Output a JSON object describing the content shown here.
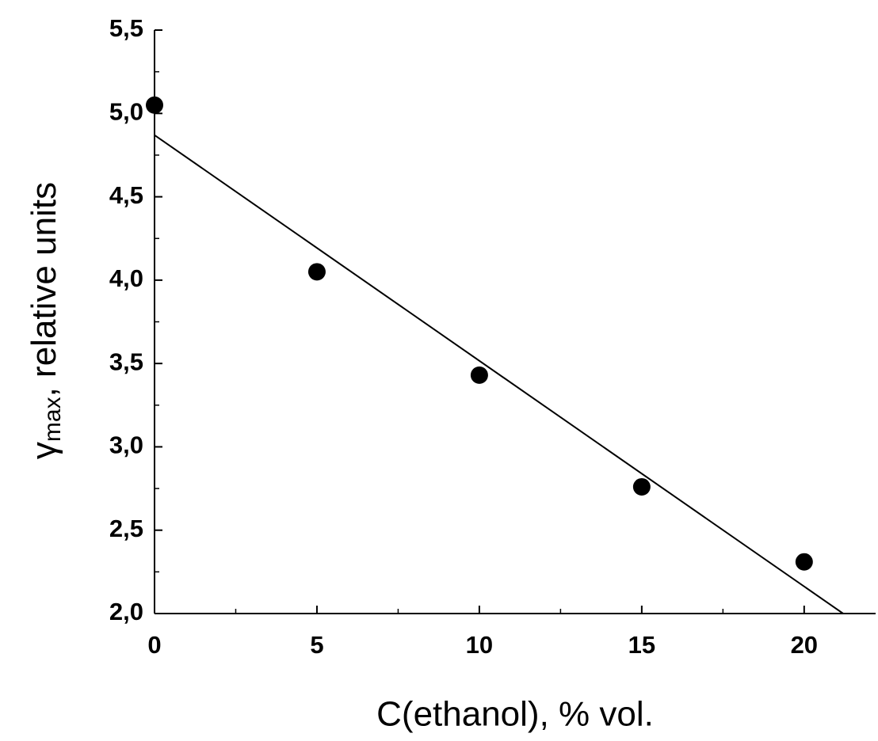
{
  "chart_data": {
    "type": "scatter",
    "xlabel": "C(ethanol), % vol.",
    "ylabel": {
      "symbol": "γ",
      "subscript": "max",
      "text": ", relative units"
    },
    "x": [
      0,
      5,
      10,
      15,
      20
    ],
    "values": [
      5.05,
      4.05,
      3.43,
      2.76,
      2.31
    ],
    "color": "#000000",
    "fit": {
      "x": [
        0,
        21.2
      ],
      "values": [
        4.87,
        2.0
      ],
      "color": "#000000"
    },
    "xlim": [
      0,
      22.2
    ],
    "ylim": [
      2.0,
      5.5
    ],
    "xticks": [
      0,
      5,
      10,
      15,
      20
    ],
    "xminorticks": [
      2.5,
      7.5,
      12.5,
      17.5
    ],
    "yticks": [
      {
        "value": 2.0,
        "label": "2,0"
      },
      {
        "value": 2.5,
        "label": "2,5"
      },
      {
        "value": 3.0,
        "label": "3,0"
      },
      {
        "value": 3.5,
        "label": "3,5"
      },
      {
        "value": 4.0,
        "label": "4,0"
      },
      {
        "value": 4.5,
        "label": "4,5"
      },
      {
        "value": 5.0,
        "label": "5,0"
      },
      {
        "value": 5.5,
        "label": "5,5"
      }
    ],
    "yminorticks": [
      2.25,
      2.75,
      3.25,
      3.75,
      4.25,
      4.75,
      5.25
    ],
    "grid": false
  }
}
